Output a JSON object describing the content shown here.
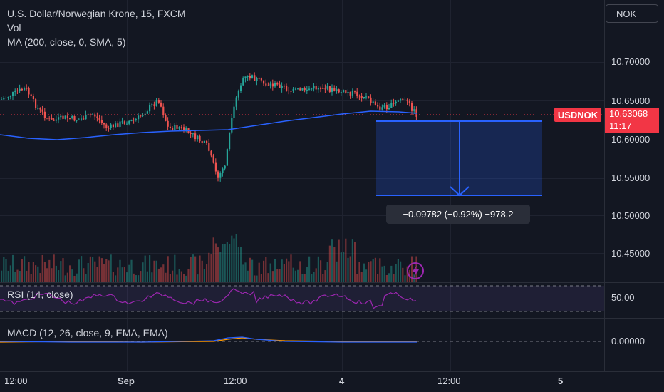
{
  "legend": {
    "title": "U.S. Dollar/Norwegian Krone, 15, FXCM",
    "vol": "Vol",
    "ma": "MA (200, close, 0, SMA, 5)"
  },
  "currency_button": "NOK",
  "price_axis": [
    "10.70000",
    "10.65000",
    "10.60000",
    "10.55000",
    "10.50000",
    "10.45000"
  ],
  "symbol_tag": "USDNOK",
  "current_price": "10.63068",
  "countdown": "11:17",
  "measure_label": "−0.09782 (−0.92%) −978.2",
  "rsi": {
    "label": "RSI (14, close)",
    "value": "50.00"
  },
  "macd": {
    "label": "MACD (12, 26, close, 9, EMA, EMA)",
    "value": "0.00000"
  },
  "time_axis": [
    "12:00",
    "Sep",
    "12:00",
    "4",
    "12:00",
    "5"
  ],
  "icons": {
    "snapshot": "lightning-icon"
  },
  "colors": {
    "up": "#26a69a",
    "down": "#ef5350",
    "ma": "#2962ff",
    "rsi": "#9c27b0",
    "accent": "#f23645",
    "measure": "#2962ff"
  }
}
